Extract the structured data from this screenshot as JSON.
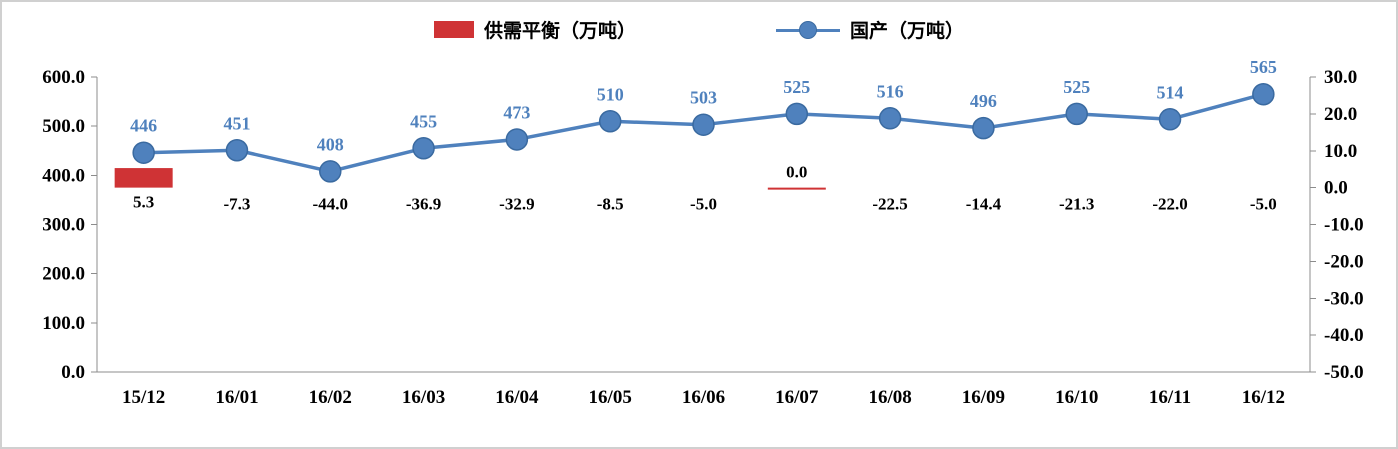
{
  "legend": {
    "bar_label": "供需平衡（万吨）",
    "line_label": "国产（万吨）"
  },
  "colors": {
    "bar": "#cf3335",
    "line": "#4f81bd",
    "marker_edge": "#3a6aa0",
    "axis": "#8c8c8c",
    "bar_label_text": "#000000",
    "line_label_text": "#4f81bd"
  },
  "chart_data": {
    "type": "combo",
    "categories": [
      "15/12",
      "16/01",
      "16/02",
      "16/03",
      "16/04",
      "16/05",
      "16/06",
      "16/07",
      "16/08",
      "16/09",
      "16/10",
      "16/11",
      "16/12"
    ],
    "series": [
      {
        "name": "供需平衡（万吨）",
        "type": "bar",
        "axis": "right",
        "color": "#cf3335",
        "values": [
          5.3,
          -7.3,
          -44.0,
          -36.9,
          -32.9,
          -8.5,
          -5.0,
          0.0,
          -22.5,
          -14.4,
          -21.3,
          -22.0,
          -5.0
        ],
        "labels": [
          "5.3",
          "-7.3",
          "-44.0",
          "-36.9",
          "-32.9",
          "-8.5",
          "-5.0",
          "0.0",
          "-22.5",
          "-14.4",
          "-21.3",
          "-22.0",
          "-5.0"
        ]
      },
      {
        "name": "国产（万吨）",
        "type": "line",
        "axis": "left",
        "color": "#4f81bd",
        "values": [
          446,
          451,
          408,
          455,
          473,
          510,
          503,
          525,
          516,
          496,
          525,
          514,
          565
        ],
        "labels": [
          "446",
          "451",
          "408",
          "455",
          "473",
          "510",
          "503",
          "525",
          "516",
          "496",
          "525",
          "514",
          "565"
        ]
      }
    ],
    "left_axis": {
      "min": 0,
      "max": 600,
      "step": 100,
      "labels": [
        "0.0",
        "100.0",
        "200.0",
        "300.0",
        "400.0",
        "500.0",
        "600.0"
      ]
    },
    "right_axis": {
      "min": -50,
      "max": 30,
      "step": 10,
      "labels": [
        "-50.0",
        "-40.0",
        "-30.0",
        "-20.0",
        "-10.0",
        "0.0",
        "10.0",
        "20.0",
        "30.0"
      ]
    },
    "grid": false,
    "legend_position": "top"
  }
}
